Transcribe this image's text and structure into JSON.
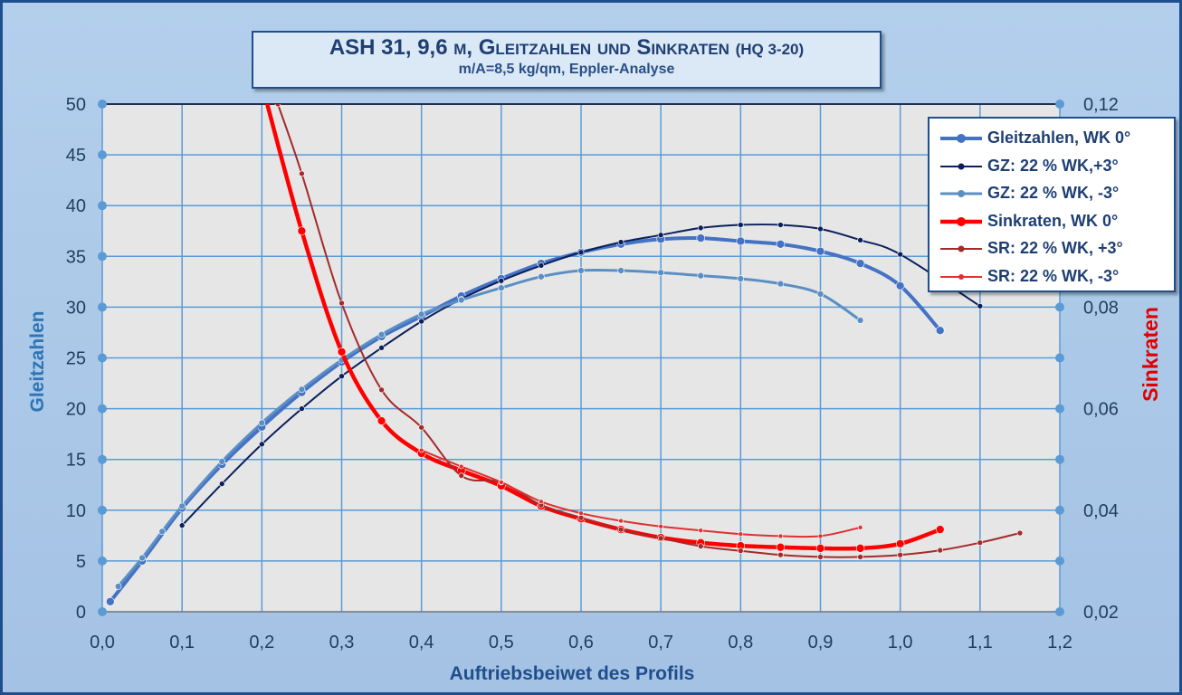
{
  "title": {
    "main": "ASH 31, 9,6 m, Gleitzahlen und Sinkraten",
    "main_suffix": "(HQ 3-20)",
    "sub": "m/A=8,5 kg/qm, Eppler-Analyse"
  },
  "colors": {
    "background": "#a9c6e6",
    "plot_area": "#e6e6e6",
    "grid": "#5b9bd5",
    "gz_0": "#4472c4",
    "gz_plus3": "#0b1f5c",
    "gz_minus3": "#5b8fc4",
    "sr_0": "#ff0000",
    "sr_plus3": "#a52a2a",
    "sr_minus3": "#e03030",
    "left_axis_title": "#2e75b6",
    "right_axis_title": "#e00000"
  },
  "chart_data": {
    "type": "line",
    "xlabel": "Auftriebsbeiwet des Profils",
    "ylabel": "Gleitzahlen",
    "y2label": "Sinkraten",
    "xlim": [
      0,
      1.2
    ],
    "ylim": [
      0,
      50
    ],
    "y2lim": [
      0.02,
      0.12
    ],
    "grid": true,
    "legend_position": "top-right",
    "x_ticks": [
      "0,0",
      "0,1",
      "0,2",
      "0,3",
      "0,4",
      "0,5",
      "0,6",
      "0,7",
      "0,8",
      "0,9",
      "1,0",
      "1,1",
      "1,2"
    ],
    "y_ticks": [
      "0",
      "5",
      "10",
      "15",
      "20",
      "25",
      "30",
      "35",
      "40",
      "45",
      "50"
    ],
    "y2_ticks": [
      "0,02",
      "0,04",
      "0,06",
      "0,08",
      "0,1",
      "0,12"
    ],
    "series": [
      {
        "name": "Gleitzahlen, WK 0°",
        "axis": "left",
        "x": [
          0.01,
          0.05,
          0.1,
          0.15,
          0.2,
          0.25,
          0.3,
          0.35,
          0.4,
          0.45,
          0.5,
          0.55,
          0.6,
          0.65,
          0.7,
          0.75,
          0.8,
          0.85,
          0.9,
          0.95,
          1.0,
          1.05
        ],
        "values": [
          1.0,
          5.0,
          10.2,
          14.5,
          18.2,
          21.6,
          24.6,
          27.1,
          29.1,
          31.1,
          32.8,
          34.3,
          35.4,
          36.2,
          36.7,
          36.8,
          36.5,
          36.2,
          35.5,
          34.3,
          32.1,
          27.7
        ]
      },
      {
        "name": "GZ: 22 % WK,+3°",
        "axis": "left",
        "x": [
          0.1,
          0.15,
          0.2,
          0.25,
          0.3,
          0.35,
          0.4,
          0.45,
          0.5,
          0.55,
          0.6,
          0.65,
          0.7,
          0.75,
          0.8,
          0.85,
          0.9,
          0.95,
          1.0,
          1.1
        ],
        "values": [
          8.5,
          12.6,
          16.5,
          20.0,
          23.2,
          26.0,
          28.6,
          30.8,
          32.6,
          34.1,
          35.4,
          36.4,
          37.1,
          37.8,
          38.1,
          38.1,
          37.7,
          36.6,
          35.2,
          30.1
        ]
      },
      {
        "name": "GZ: 22 % WK, -3°",
        "axis": "left",
        "x": [
          0.02,
          0.05,
          0.075,
          0.1,
          0.15,
          0.2,
          0.25,
          0.3,
          0.35,
          0.4,
          0.45,
          0.5,
          0.55,
          0.6,
          0.65,
          0.7,
          0.75,
          0.8,
          0.85,
          0.9,
          0.95
        ],
        "values": [
          2.5,
          5.3,
          7.9,
          10.4,
          14.8,
          18.6,
          21.9,
          24.8,
          27.3,
          29.3,
          30.7,
          31.9,
          33.0,
          33.6,
          33.6,
          33.4,
          33.1,
          32.8,
          32.3,
          31.3,
          28.7
        ]
      },
      {
        "name": "Sinkraten, WK 0°",
        "axis": "right",
        "x": [
          0.2,
          0.25,
          0.3,
          0.35,
          0.4,
          0.45,
          0.5,
          0.55,
          0.6,
          0.65,
          0.7,
          0.75,
          0.8,
          0.85,
          0.9,
          0.95,
          1.0,
          1.05
        ],
        "values": [
          0.124,
          0.095,
          0.0712,
          0.0576,
          0.0512,
          0.0478,
          0.0448,
          0.0408,
          0.0383,
          0.0362,
          0.0346,
          0.0336,
          0.033,
          0.0327,
          0.0325,
          0.0325,
          0.0334,
          0.0362
        ]
      },
      {
        "name": "SR: 22 % WK, +3°",
        "axis": "right",
        "x": [
          0.22,
          0.25,
          0.3,
          0.35,
          0.4,
          0.45,
          0.5,
          0.55,
          0.6,
          0.65,
          0.7,
          0.75,
          0.8,
          0.85,
          0.9,
          0.95,
          1.0,
          1.05,
          1.1,
          1.15
        ],
        "values": [
          0.12,
          0.1063,
          0.0808,
          0.0637,
          0.0563,
          0.0468,
          0.0455,
          0.041,
          0.0385,
          0.0362,
          0.0345,
          0.0329,
          0.032,
          0.0312,
          0.0308,
          0.0308,
          0.0312,
          0.0321,
          0.0336,
          0.0355
        ]
      },
      {
        "name": "SR: 22 % WK, -3°",
        "axis": "right",
        "x": [
          0.4,
          0.45,
          0.5,
          0.55,
          0.6,
          0.65,
          0.7,
          0.75,
          0.8,
          0.85,
          0.9,
          0.95
        ],
        "values": [
          0.0518,
          0.0486,
          0.0455,
          0.0417,
          0.0394,
          0.0379,
          0.0368,
          0.036,
          0.0353,
          0.0349,
          0.0349,
          0.0366
        ]
      }
    ]
  }
}
